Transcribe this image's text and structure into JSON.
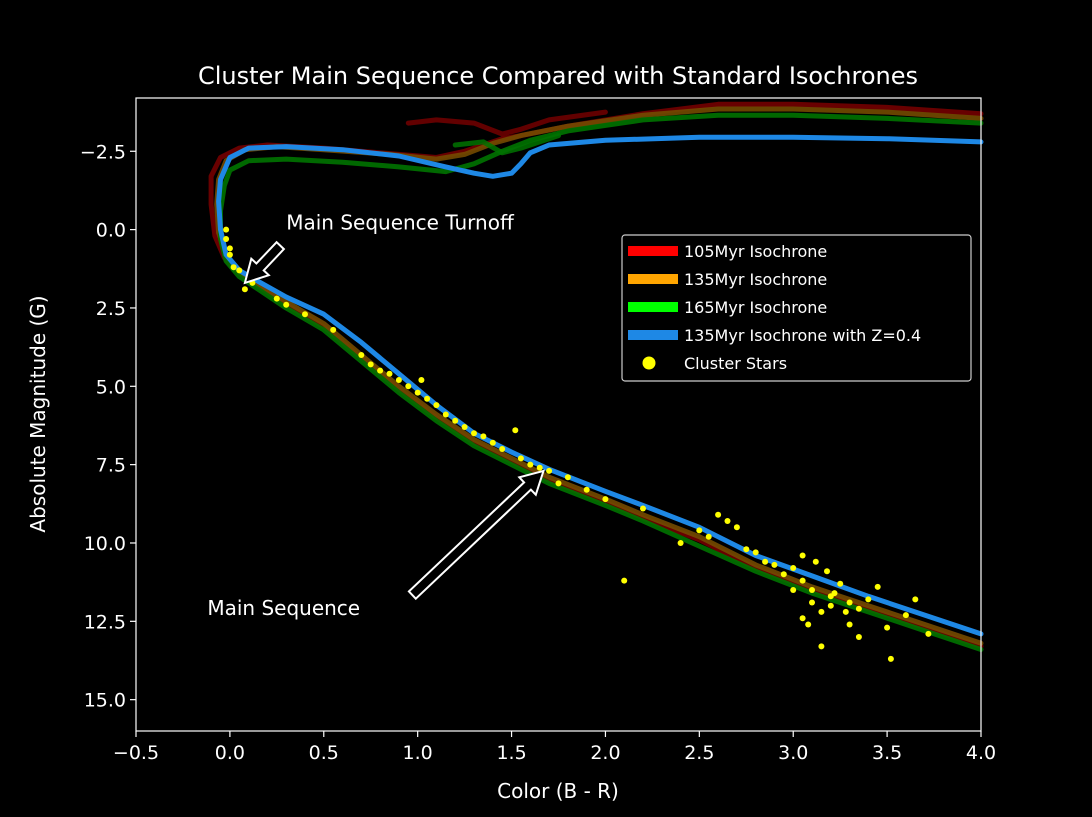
{
  "chart_data": {
    "type": "line",
    "title": "Cluster Main Sequence Compared with Standard Isochrones",
    "xlabel": "Color (B - R)",
    "ylabel": "Absolute Magnitude (G)",
    "xlim": [
      -0.5,
      4.0
    ],
    "ylim": [
      -4.2,
      16.0
    ],
    "y_inverted": true,
    "xticks": [
      -0.5,
      0.0,
      0.5,
      1.0,
      1.5,
      2.0,
      2.5,
      3.0,
      3.5,
      4.0
    ],
    "xtick_labels": [
      "−0.5",
      "0.0",
      "0.5",
      "1.0",
      "1.5",
      "2.0",
      "2.5",
      "3.0",
      "3.5",
      "4.0"
    ],
    "yticks": [
      -2.5,
      0.0,
      2.5,
      5.0,
      7.5,
      10.0,
      12.5,
      15.0
    ],
    "ytick_labels": [
      "−2.5",
      "0.0",
      "2.5",
      "5.0",
      "7.5",
      "10.0",
      "12.5",
      "15.0"
    ],
    "grid": false,
    "legend_position": "center-right",
    "series": [
      {
        "name": "105Myr Isochrone",
        "color": "#ff0000",
        "points": [
          [
            4.0,
            13.3
          ],
          [
            3.7,
            12.7
          ],
          [
            3.4,
            12.1
          ],
          [
            3.1,
            11.5
          ],
          [
            2.8,
            10.8
          ],
          [
            2.5,
            9.9
          ],
          [
            2.2,
            9.2
          ],
          [
            2.0,
            8.7
          ],
          [
            1.7,
            8.0
          ],
          [
            1.5,
            7.4
          ],
          [
            1.3,
            6.8
          ],
          [
            1.1,
            6.0
          ],
          [
            0.9,
            5.1
          ],
          [
            0.7,
            4.1
          ],
          [
            0.5,
            3.1
          ],
          [
            0.3,
            2.4
          ],
          [
            0.15,
            1.8
          ],
          [
            0.05,
            1.4
          ],
          [
            -0.03,
            0.9
          ],
          [
            -0.08,
            0.2
          ],
          [
            -0.1,
            -0.8
          ],
          [
            -0.1,
            -1.7
          ],
          [
            -0.05,
            -2.3
          ],
          [
            0.05,
            -2.6
          ],
          [
            0.2,
            -2.7
          ],
          [
            0.5,
            -2.6
          ],
          [
            0.9,
            -2.4
          ],
          [
            1.1,
            -2.3
          ],
          [
            1.25,
            -2.5
          ],
          [
            1.35,
            -2.7
          ],
          [
            1.45,
            -2.9
          ],
          [
            1.55,
            -3.0
          ],
          [
            1.8,
            -3.3
          ],
          [
            2.2,
            -3.7
          ],
          [
            2.6,
            -4.0
          ],
          [
            3.0,
            -4.0
          ],
          [
            3.5,
            -3.9
          ],
          [
            4.0,
            -3.7
          ]
        ],
        "extra_segments": [
          [
            [
              0.95,
              -3.4
            ],
            [
              1.1,
              -3.5
            ],
            [
              1.3,
              -3.4
            ],
            [
              1.45,
              -3.05
            ],
            [
              1.55,
              -3.2
            ],
            [
              1.7,
              -3.5
            ],
            [
              2.0,
              -3.75
            ]
          ]
        ]
      },
      {
        "name": "135Myr Isochrone",
        "color": "#ffa500",
        "points": [
          [
            4.0,
            13.2
          ],
          [
            3.7,
            12.6
          ],
          [
            3.4,
            12.0
          ],
          [
            3.1,
            11.4
          ],
          [
            2.8,
            10.7
          ],
          [
            2.5,
            9.8
          ],
          [
            2.2,
            9.1
          ],
          [
            2.0,
            8.6
          ],
          [
            1.7,
            7.9
          ],
          [
            1.5,
            7.3
          ],
          [
            1.3,
            6.7
          ],
          [
            1.1,
            5.9
          ],
          [
            0.9,
            5.0
          ],
          [
            0.7,
            4.0
          ],
          [
            0.5,
            3.0
          ],
          [
            0.3,
            2.3
          ],
          [
            0.15,
            1.75
          ],
          [
            0.05,
            1.35
          ],
          [
            -0.02,
            0.8
          ],
          [
            -0.06,
            0.1
          ],
          [
            -0.07,
            -0.8
          ],
          [
            -0.06,
            -1.6
          ],
          [
            -0.02,
            -2.2
          ],
          [
            0.08,
            -2.55
          ],
          [
            0.25,
            -2.65
          ],
          [
            0.5,
            -2.55
          ],
          [
            0.85,
            -2.4
          ],
          [
            1.1,
            -2.25
          ],
          [
            1.25,
            -2.4
          ],
          [
            1.4,
            -2.75
          ],
          [
            1.55,
            -3.0
          ],
          [
            1.8,
            -3.3
          ],
          [
            2.2,
            -3.65
          ],
          [
            2.6,
            -3.85
          ],
          [
            3.0,
            -3.85
          ],
          [
            3.5,
            -3.75
          ],
          [
            4.0,
            -3.55
          ]
        ],
        "extra_segments": []
      },
      {
        "name": "165Myr Isochrone",
        "color": "#00ff00",
        "points": [
          [
            4.0,
            13.4
          ],
          [
            3.7,
            12.8
          ],
          [
            3.4,
            12.2
          ],
          [
            3.1,
            11.6
          ],
          [
            2.8,
            10.9
          ],
          [
            2.5,
            10.1
          ],
          [
            2.2,
            9.3
          ],
          [
            2.0,
            8.8
          ],
          [
            1.7,
            8.1
          ],
          [
            1.5,
            7.5
          ],
          [
            1.3,
            6.9
          ],
          [
            1.1,
            6.1
          ],
          [
            0.9,
            5.2
          ],
          [
            0.7,
            4.2
          ],
          [
            0.5,
            3.2
          ],
          [
            0.3,
            2.5
          ],
          [
            0.15,
            1.9
          ],
          [
            0.05,
            1.5
          ],
          [
            -0.02,
            1.0
          ],
          [
            -0.05,
            0.3
          ],
          [
            -0.05,
            -0.6
          ],
          [
            -0.03,
            -1.4
          ],
          [
            0.0,
            -1.9
          ],
          [
            0.1,
            -2.2
          ],
          [
            0.3,
            -2.25
          ],
          [
            0.6,
            -2.15
          ],
          [
            0.9,
            -2.0
          ],
          [
            1.15,
            -1.85
          ],
          [
            1.3,
            -2.1
          ],
          [
            1.45,
            -2.5
          ],
          [
            1.6,
            -2.85
          ],
          [
            1.8,
            -3.15
          ],
          [
            2.2,
            -3.5
          ],
          [
            2.6,
            -3.65
          ],
          [
            3.0,
            -3.65
          ],
          [
            3.5,
            -3.55
          ],
          [
            4.0,
            -3.4
          ]
        ],
        "extra_segments": [
          [
            [
              1.2,
              -2.7
            ],
            [
              1.35,
              -2.8
            ],
            [
              1.45,
              -2.45
            ],
            [
              1.55,
              -2.6
            ],
            [
              1.75,
              -3.0
            ]
          ]
        ]
      },
      {
        "name": "135Myr Isochrone with Z=0.4",
        "color": "#1e88e5",
        "points": [
          [
            4.0,
            12.9
          ],
          [
            3.7,
            12.3
          ],
          [
            3.4,
            11.7
          ],
          [
            3.1,
            11.05
          ],
          [
            2.8,
            10.4
          ],
          [
            2.5,
            9.5
          ],
          [
            2.2,
            8.8
          ],
          [
            2.0,
            8.35
          ],
          [
            1.7,
            7.65
          ],
          [
            1.5,
            7.1
          ],
          [
            1.3,
            6.5
          ],
          [
            1.1,
            5.6
          ],
          [
            0.9,
            4.6
          ],
          [
            0.7,
            3.6
          ],
          [
            0.5,
            2.7
          ],
          [
            0.3,
            2.15
          ],
          [
            0.15,
            1.65
          ],
          [
            0.05,
            1.3
          ],
          [
            -0.02,
            0.8
          ],
          [
            -0.05,
            0.0
          ],
          [
            -0.06,
            -0.9
          ],
          [
            -0.05,
            -1.6
          ],
          [
            0.0,
            -2.3
          ],
          [
            0.1,
            -2.6
          ],
          [
            0.3,
            -2.65
          ],
          [
            0.6,
            -2.55
          ],
          [
            0.9,
            -2.35
          ],
          [
            1.15,
            -2.0
          ],
          [
            1.3,
            -1.8
          ],
          [
            1.4,
            -1.7
          ],
          [
            1.5,
            -1.8
          ],
          [
            1.55,
            -2.1
          ],
          [
            1.6,
            -2.45
          ],
          [
            1.7,
            -2.7
          ],
          [
            2.0,
            -2.85
          ],
          [
            2.5,
            -2.95
          ],
          [
            3.0,
            -2.95
          ],
          [
            3.5,
            -2.9
          ],
          [
            4.0,
            -2.8
          ]
        ],
        "extra_segments": []
      }
    ],
    "stars": {
      "name": "Cluster Stars",
      "color": "#ffff00",
      "points": [
        [
          -0.02,
          0.0
        ],
        [
          -0.02,
          0.3
        ],
        [
          0.0,
          0.6
        ],
        [
          0.0,
          0.8
        ],
        [
          0.02,
          1.2
        ],
        [
          0.05,
          1.3
        ],
        [
          0.08,
          1.9
        ],
        [
          0.12,
          1.7
        ],
        [
          0.25,
          2.2
        ],
        [
          0.3,
          2.4
        ],
        [
          0.4,
          2.7
        ],
        [
          0.55,
          3.2
        ],
        [
          0.7,
          4.0
        ],
        [
          0.75,
          4.3
        ],
        [
          0.8,
          4.5
        ],
        [
          0.85,
          4.6
        ],
        [
          0.9,
          4.8
        ],
        [
          0.95,
          5.0
        ],
        [
          1.0,
          5.2
        ],
        [
          1.02,
          4.8
        ],
        [
          1.05,
          5.4
        ],
        [
          1.1,
          5.6
        ],
        [
          1.15,
          5.9
        ],
        [
          1.2,
          6.1
        ],
        [
          1.25,
          6.3
        ],
        [
          1.3,
          6.5
        ],
        [
          1.35,
          6.6
        ],
        [
          1.4,
          6.8
        ],
        [
          1.45,
          7.0
        ],
        [
          1.52,
          6.4
        ],
        [
          1.55,
          7.3
        ],
        [
          1.6,
          7.5
        ],
        [
          1.65,
          7.6
        ],
        [
          1.7,
          7.7
        ],
        [
          1.75,
          8.1
        ],
        [
          1.8,
          7.9
        ],
        [
          1.9,
          8.3
        ],
        [
          2.0,
          8.6
        ],
        [
          2.1,
          11.2
        ],
        [
          2.2,
          8.9
        ],
        [
          2.4,
          10.0
        ],
        [
          2.5,
          9.6
        ],
        [
          2.55,
          9.8
        ],
        [
          2.6,
          9.1
        ],
        [
          2.65,
          9.3
        ],
        [
          2.7,
          9.5
        ],
        [
          2.75,
          10.2
        ],
        [
          2.8,
          10.3
        ],
        [
          2.85,
          10.6
        ],
        [
          2.9,
          10.7
        ],
        [
          2.95,
          11.0
        ],
        [
          3.0,
          10.8
        ],
        [
          3.05,
          11.2
        ],
        [
          3.05,
          10.4
        ],
        [
          3.1,
          11.5
        ],
        [
          3.1,
          11.9
        ],
        [
          3.15,
          12.2
        ],
        [
          3.15,
          13.3
        ],
        [
          3.2,
          11.7
        ],
        [
          3.2,
          12.0
        ],
        [
          3.25,
          11.3
        ],
        [
          3.3,
          11.9
        ],
        [
          3.3,
          12.6
        ],
        [
          3.35,
          12.1
        ],
        [
          3.35,
          13.0
        ],
        [
          3.4,
          11.8
        ],
        [
          3.45,
          11.4
        ],
        [
          3.5,
          12.7
        ],
        [
          3.52,
          13.7
        ],
        [
          3.6,
          12.3
        ],
        [
          3.65,
          11.8
        ],
        [
          3.72,
          12.9
        ],
        [
          3.05,
          12.4
        ],
        [
          3.08,
          12.6
        ],
        [
          3.12,
          10.6
        ],
        [
          3.18,
          10.9
        ],
        [
          3.22,
          11.6
        ],
        [
          3.28,
          12.2
        ],
        [
          3.0,
          11.5
        ]
      ]
    },
    "annotations": [
      {
        "text": "Main Sequence Turnoff",
        "x": 0.3,
        "y": 0.0,
        "arrow_to": [
          0.08,
          1.7
        ]
      },
      {
        "text": "Main Sequence",
        "x": -0.12,
        "y": 12.3,
        "arrow_to": [
          1.67,
          7.7
        ]
      }
    ]
  }
}
